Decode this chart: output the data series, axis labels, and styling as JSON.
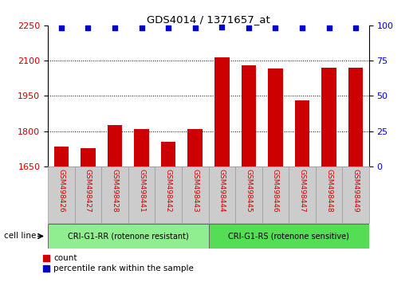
{
  "title": "GDS4014 / 1371657_at",
  "categories": [
    "GSM498426",
    "GSM498427",
    "GSM498428",
    "GSM498441",
    "GSM498442",
    "GSM498443",
    "GSM498444",
    "GSM498445",
    "GSM498446",
    "GSM498447",
    "GSM498448",
    "GSM498449"
  ],
  "bar_values": [
    1735,
    1728,
    1825,
    1810,
    1755,
    1808,
    2115,
    2080,
    2065,
    1930,
    2070,
    2070
  ],
  "percentile_values": [
    98,
    98,
    98,
    98,
    98,
    98,
    99,
    98,
    98,
    98,
    98,
    98
  ],
  "bar_color": "#cc0000",
  "dot_color": "#0000cc",
  "ylim_left": [
    1650,
    2250
  ],
  "ylim_right": [
    0,
    100
  ],
  "yticks_left": [
    1650,
    1800,
    1950,
    2100,
    2250
  ],
  "yticks_right": [
    0,
    25,
    50,
    75,
    100
  ],
  "group1_label": "CRI-G1-RR (rotenone resistant)",
  "group2_label": "CRI-G1-RS (rotenone sensitive)",
  "group1_count": 6,
  "group2_count": 6,
  "cell_line_label": "cell line",
  "legend_count_label": "count",
  "legend_percentile_label": "percentile rank within the sample",
  "group1_color": "#90ee90",
  "group2_color": "#55dd55",
  "tickbg_color": "#cccccc",
  "background_color": "#ffffff"
}
